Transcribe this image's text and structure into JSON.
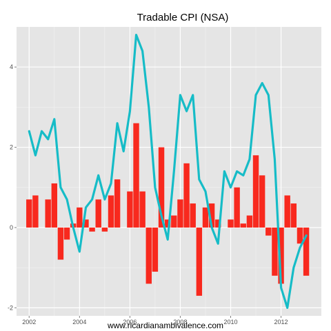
{
  "chart_data": {
    "type": "bar",
    "title": "Tradable CPI (NSA)",
    "xlabel": "www.ricardianambivalence.com",
    "ylabel": "",
    "xlim": [
      2001.5,
      2013.6
    ],
    "ylim": [
      -2.2,
      5.0
    ],
    "x_ticks": [
      "2002",
      "2004",
      "2006",
      "2008",
      "2010",
      "2012"
    ],
    "y_ticks": [
      "-2",
      "0",
      "2",
      "4"
    ],
    "grid": true,
    "legend": "none",
    "colors": {
      "bars": "#f8291e",
      "line": "#16bcc7",
      "panel": "#e5e5e5",
      "grid": "#ffffff"
    },
    "x": [
      2002.0,
      2002.25,
      2002.5,
      2002.75,
      2003.0,
      2003.25,
      2003.5,
      2003.75,
      2004.0,
      2004.25,
      2004.5,
      2004.75,
      2005.0,
      2005.25,
      2005.5,
      2005.75,
      2006.0,
      2006.25,
      2006.5,
      2006.75,
      2007.0,
      2007.25,
      2007.5,
      2007.75,
      2008.0,
      2008.25,
      2008.5,
      2008.75,
      2009.0,
      2009.25,
      2009.5,
      2009.75,
      2010.0,
      2010.25,
      2010.5,
      2010.75,
      2011.0,
      2011.25,
      2011.5,
      2011.75,
      2012.0,
      2012.25,
      2012.5,
      2012.75,
      2013.0
    ],
    "series": [
      {
        "type": "bar",
        "values": [
          0.7,
          0.8,
          0.0,
          0.7,
          1.1,
          -0.8,
          -0.3,
          0.1,
          0.5,
          0.2,
          -0.1,
          0.7,
          -0.1,
          0.8,
          1.2,
          0.0,
          0.9,
          2.6,
          0.9,
          -1.4,
          -1.1,
          2.0,
          0.2,
          0.3,
          0.7,
          1.6,
          0.6,
          -1.7,
          0.5,
          0.6,
          0.2,
          0.0,
          0.2,
          1.0,
          0.1,
          0.3,
          1.8,
          1.3,
          -0.2,
          -1.2,
          -1.4,
          0.8,
          0.6,
          -0.4,
          -1.2
        ]
      },
      {
        "type": "line",
        "values": [
          2.4,
          1.8,
          2.4,
          2.2,
          2.7,
          1.0,
          0.7,
          0.0,
          -0.6,
          0.5,
          0.7,
          1.3,
          0.7,
          1.1,
          2.6,
          1.9,
          2.9,
          4.8,
          4.4,
          3.0,
          1.0,
          0.3,
          -0.3,
          1.4,
          3.3,
          2.9,
          3.3,
          1.2,
          0.9,
          0.0,
          -0.4,
          1.4,
          1.0,
          1.4,
          1.3,
          1.7,
          3.3,
          3.6,
          3.3,
          1.7,
          -1.5,
          -2.0,
          -1.0,
          -0.5,
          -0.2
        ]
      }
    ]
  }
}
